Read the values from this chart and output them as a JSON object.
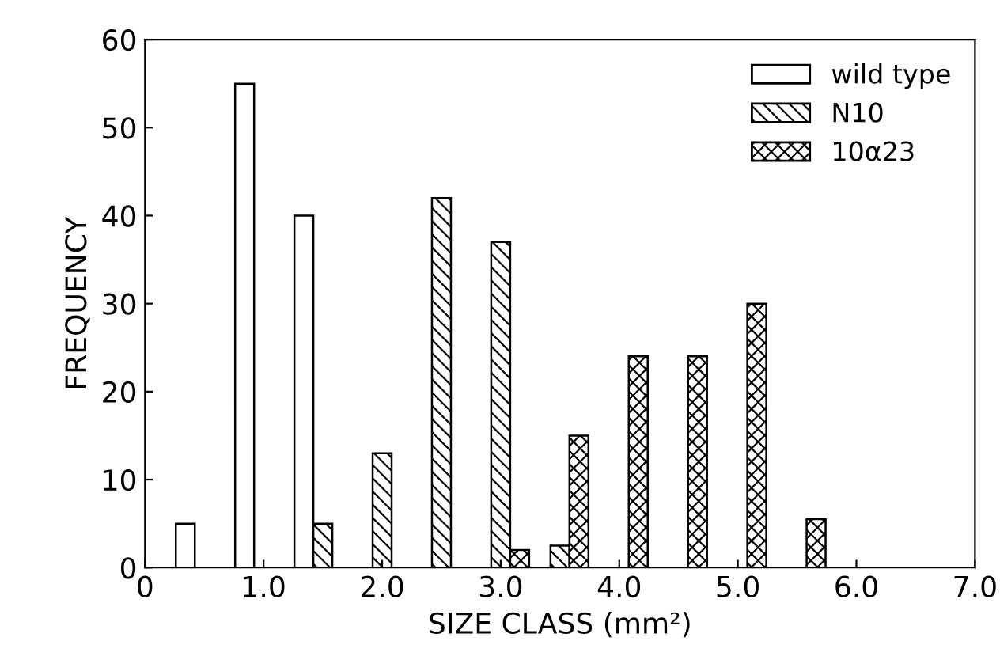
{
  "chart_data": {
    "type": "bar",
    "xlabel": "SIZE CLASS (mm²)",
    "ylabel": "FREQUENCY",
    "series": [
      {
        "name": "wild type",
        "color": "#ffffff",
        "x": [
          0.5,
          1.0,
          1.5
        ],
        "values": [
          5,
          55,
          40
        ]
      },
      {
        "name": "N10",
        "color": "#000000",
        "x": [
          1.5,
          2.0,
          2.5,
          3.0,
          3.5
        ],
        "values": [
          5,
          13,
          42,
          37,
          2.5
        ]
      },
      {
        "name": "10α23",
        "color": "#000000",
        "x": [
          3.0,
          3.5,
          4.0,
          4.5,
          5.0,
          5.5
        ],
        "values": [
          2,
          15,
          24,
          24,
          30,
          5.5
        ]
      }
    ],
    "xlim": [
      0,
      7.0
    ],
    "xticks": [
      0,
      {
        "value": 1,
        "label": "1.0"
      },
      {
        "value": 2,
        "label": "2.0"
      },
      {
        "value": 3,
        "label": "3.0"
      },
      {
        "value": 4,
        "label": "4.0"
      },
      {
        "value": 5,
        "label": "5.0"
      },
      {
        "value": 6,
        "label": "6.0"
      },
      {
        "value": 7,
        "label": "7.0"
      }
    ],
    "ylim": [
      0,
      60
    ],
    "yticks": [
      0,
      10,
      20,
      30,
      40,
      50,
      60
    ],
    "legend": "top right",
    "grid": false
  }
}
